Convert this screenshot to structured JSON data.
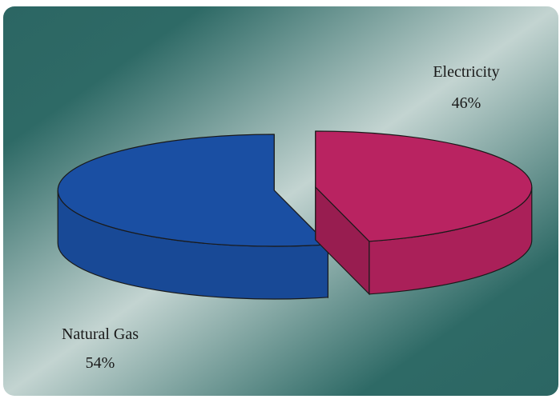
{
  "chart_data": {
    "type": "pie",
    "style": "3d-exploded",
    "slices": [
      {
        "label": "Natural Gas",
        "value": 54,
        "value_label": "54%",
        "color": "#1A4FA3"
      },
      {
        "label": "Electricity",
        "value": 46,
        "value_label": "46%",
        "color": "#B92361"
      }
    ],
    "title": "",
    "legend": "none"
  },
  "colors": {
    "background_dark": "#2C6663",
    "background_light": "#BDD0CC",
    "outline": "#1a1a1a",
    "label_text": "#1a1a1a"
  }
}
